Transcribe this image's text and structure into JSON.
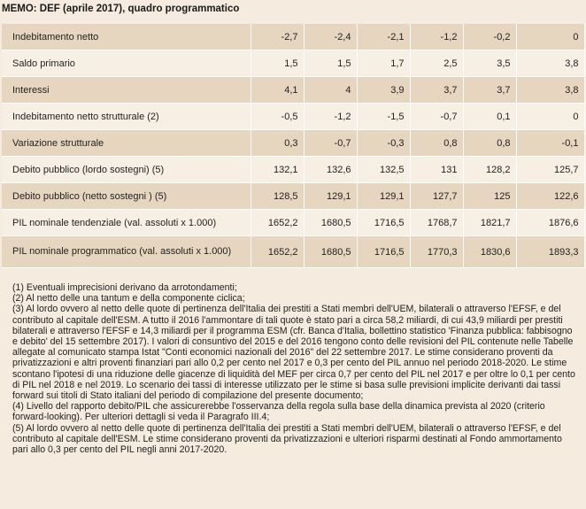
{
  "title": "MEMO: DEF (aprile 2017), quadro programmatico",
  "rows": [
    {
      "label": "Indebitamento netto",
      "values": [
        "-2,7",
        "-2,4",
        "-2,1",
        "-1,2",
        "-0,2",
        "0"
      ]
    },
    {
      "label": "Saldo primario",
      "values": [
        "1,5",
        "1,5",
        "1,7",
        "2,5",
        "3,5",
        "3,8"
      ]
    },
    {
      "label": "Interessi",
      "values": [
        "4,1",
        "4",
        "3,9",
        "3,7",
        "3,7",
        "3,8"
      ]
    },
    {
      "label": "Indebitamento netto strutturale (2)",
      "values": [
        "-0,5",
        "-1,2",
        "-1,5",
        "-0,7",
        "0,1",
        "0"
      ]
    },
    {
      "label": "Variazione strutturale",
      "values": [
        "0,3",
        "-0,7",
        "-0,3",
        "0,8",
        "0,8",
        "-0,1"
      ]
    },
    {
      "label": "Debito pubblico (lordo sostegni) (5)",
      "values": [
        "132,1",
        "132,6",
        "132,5",
        "131",
        "128,2",
        "125,7"
      ]
    },
    {
      "label": "Debito pubblico (netto sostegni ) (5)",
      "values": [
        "128,5",
        "129,1",
        "129,1",
        "127,7",
        "125",
        "122,6"
      ]
    },
    {
      "label": "PIL nominale tendenziale (val. assoluti x 1.000)",
      "values": [
        "1652,2",
        "1680,5",
        "1716,5",
        "1768,7",
        "1821,7",
        "1876,6"
      ]
    },
    {
      "label": "PIL nominale programmatico (val. assoluti x 1.000)",
      "values": [
        "1652,2",
        "1680,5",
        "1716,5",
        "1770,3",
        "1830,6",
        "1893,3"
      ]
    }
  ],
  "notes": [
    "(1) Eventuali imprecisioni derivano da arrotondamenti;",
    "(2) Al netto delle una tantum e della componente ciclica;",
    "(3) Al lordo ovvero al netto delle quote di pertinenza dell'Italia dei prestiti a Stati membri dell'UEM, bilaterali o attraverso l'EFSF, e del contributo al capitale dell'ESM. A tutto il 2016 l'ammontare di tali quote è stato pari a circa 58,2 miliardi, di cui 43,9 miliardi per prestiti bilaterali e attraverso l'EFSF e 14,3 miliardi per il programma ESM (cfr. Banca d'Italia, bollettino statistico 'Finanza pubblica: fabbisogno e debito' del 15 settembre 2017). I valori di consuntivo del 2015 e del 2016 tengono conto delle revisioni del PIL contenute nelle Tabelle allegate al comunicato stampa Istat \"Conti economici nazionali del 2016\" del 22 settembre 2017. Le stime considerano proventi da privatizzazioni e altri proventi finanziari pari allo 0,2 per cento nel 2017 e 0,3 per cento del PIL annuo nel periodo 2018-2020. Le stime scontano l'ipotesi di una riduzione delle giacenze di liquidità del MEF per circa 0,7 per cento del PIL nel 2017 e per oltre lo 0,1 per cento di PIL nel 2018 e nel 2019. Lo scenario dei tassi di interesse utilizzato per le stime si basa sulle previsioni implicite derivanti dai tassi forward sui titoli di Stato italiani del periodo di compilazione del presente documento;",
    "(4) Livello del rapporto debito/PIL che assicurerebbe l'osservanza della regola sulla base della dinamica prevista al 2020 (criterio forward-looking). Per ulteriori dettagli si veda il Paragrafo III.4;",
    "(5) Al lordo ovvero al netto delle quote di pertinenza dell'Italia dei prestiti a Stati membri dell'UEM, bilaterali o attraverso l'EFSF, e del contributo al capitale dell'ESM. Le stime considerano proventi da privatizzazioni e ulteriori risparmi destinati al Fondo ammortamento pari allo 0,3 per cento del PIL negli anni 2017-2020."
  ]
}
